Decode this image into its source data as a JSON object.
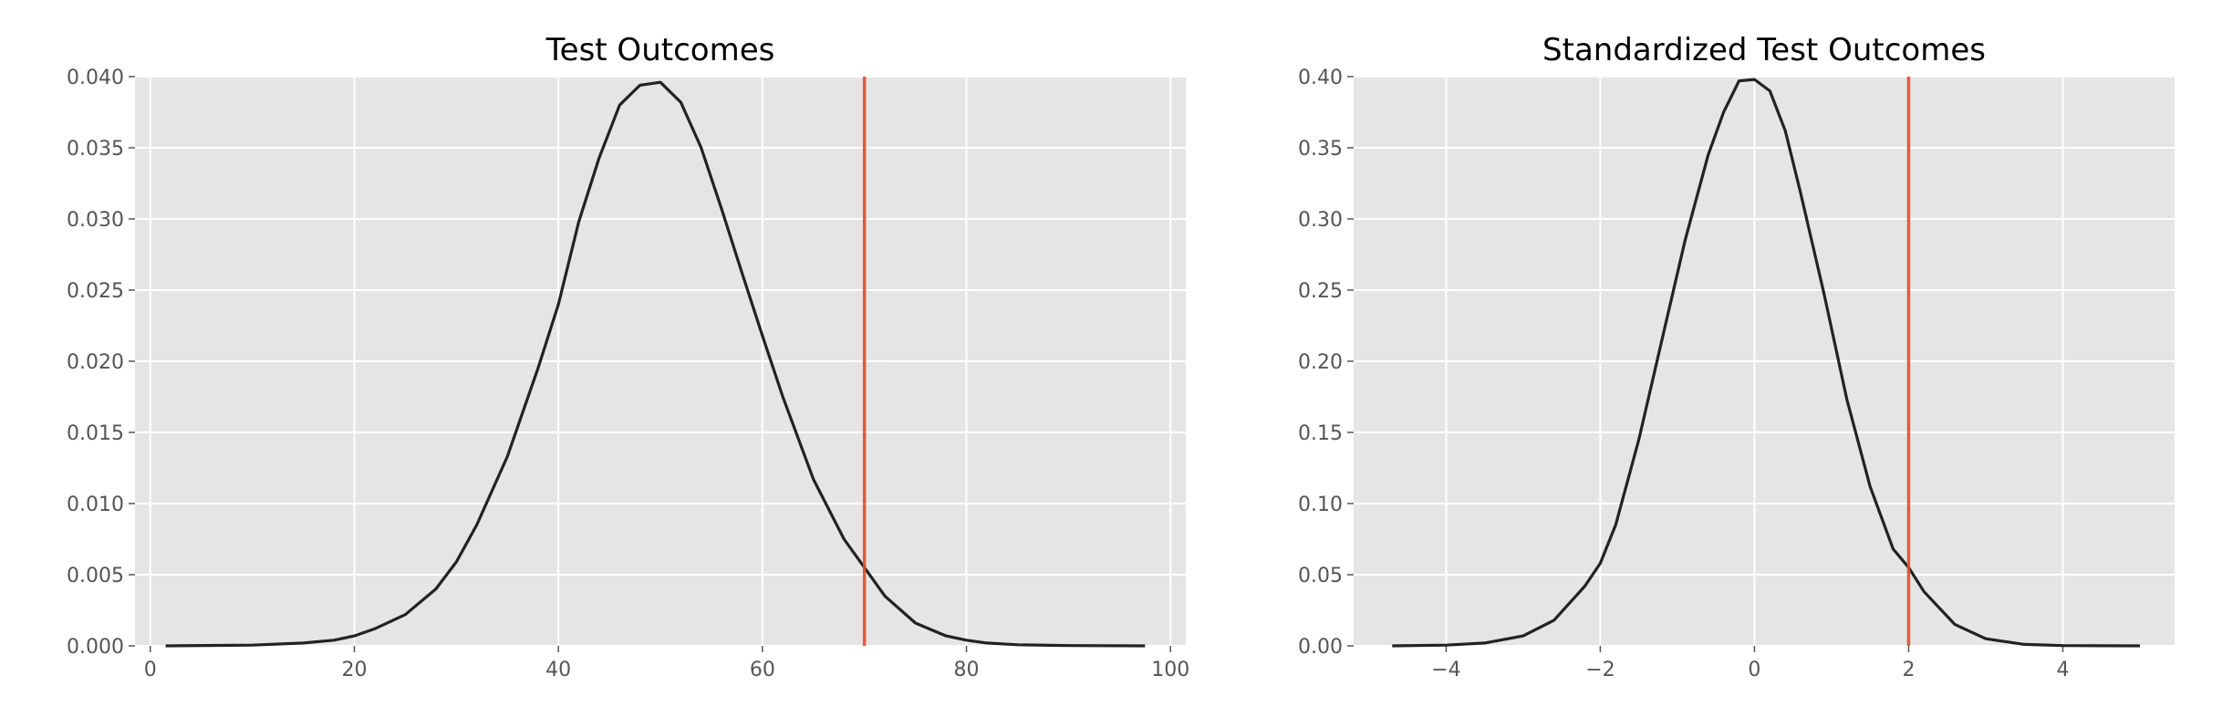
{
  "chart_data": [
    {
      "type": "line",
      "title": "Test Outcomes",
      "xlabel": "",
      "ylabel": "",
      "xlim": [
        -1.5,
        101.5
      ],
      "ylim": [
        0,
        0.04
      ],
      "xticks": [
        0,
        20,
        40,
        60,
        80,
        100
      ],
      "yticks": [
        0.0,
        0.005,
        0.01,
        0.015,
        0.02,
        0.025,
        0.03,
        0.035,
        0.04
      ],
      "xtick_labels": [
        "0",
        "20",
        "40",
        "60",
        "80",
        "100"
      ],
      "ytick_labels": [
        "0.000",
        "0.005",
        "0.010",
        "0.015",
        "0.020",
        "0.025",
        "0.030",
        "0.035",
        "0.040"
      ],
      "grid": true,
      "series": [
        {
          "color": "#222222",
          "x": [
            1.5,
            10,
            15,
            18,
            20,
            22,
            25,
            28,
            30,
            32,
            35,
            38,
            40,
            42,
            44,
            46,
            48,
            50,
            52,
            54,
            56,
            58,
            60,
            62,
            65,
            68,
            70,
            72,
            75,
            78,
            80,
            82,
            85,
            90,
            97.5
          ],
          "y": [
            0.0,
            5e-05,
            0.0002,
            0.0004,
            0.0007,
            0.0012,
            0.0022,
            0.004,
            0.0059,
            0.0085,
            0.0133,
            0.0195,
            0.024,
            0.0298,
            0.0343,
            0.038,
            0.0394,
            0.0396,
            0.0382,
            0.035,
            0.0307,
            0.0262,
            0.0218,
            0.0175,
            0.0117,
            0.0075,
            0.0055,
            0.0035,
            0.0016,
            0.0007,
            0.0004,
            0.0002,
            8e-05,
            2e-05,
            0.0
          ]
        }
      ],
      "vline": {
        "x": 70,
        "color": "#e24a33"
      }
    },
    {
      "type": "line",
      "title": "Standardized Test Outcomes",
      "xlabel": "",
      "ylabel": "",
      "xlim": [
        -5.2,
        5.45
      ],
      "ylim": [
        0,
        0.4
      ],
      "xticks": [
        -4,
        -2,
        0,
        2,
        4
      ],
      "yticks": [
        0.0,
        0.05,
        0.1,
        0.15,
        0.2,
        0.25,
        0.3,
        0.35,
        0.4
      ],
      "xtick_labels": [
        "−4",
        "−2",
        "0",
        "2",
        "4"
      ],
      "ytick_labels": [
        "0.00",
        "0.05",
        "0.10",
        "0.15",
        "0.20",
        "0.25",
        "0.30",
        "0.35",
        "0.40"
      ],
      "grid": true,
      "series": [
        {
          "color": "#222222",
          "x": [
            -4.7,
            -4.0,
            -3.5,
            -3.0,
            -2.6,
            -2.2,
            -2.0,
            -1.8,
            -1.5,
            -1.2,
            -0.9,
            -0.6,
            -0.4,
            -0.2,
            0.0,
            0.2,
            0.4,
            0.6,
            0.9,
            1.2,
            1.5,
            1.8,
            2.0,
            2.2,
            2.6,
            3.0,
            3.5,
            4.0,
            4.5,
            5.0
          ],
          "y": [
            0.0,
            0.0005,
            0.002,
            0.007,
            0.018,
            0.042,
            0.058,
            0.085,
            0.145,
            0.215,
            0.285,
            0.345,
            0.375,
            0.397,
            0.398,
            0.39,
            0.362,
            0.318,
            0.248,
            0.173,
            0.112,
            0.068,
            0.055,
            0.038,
            0.015,
            0.005,
            0.001,
            0.0002,
            5e-05,
            0.0
          ]
        }
      ],
      "vline": {
        "x": 2,
        "color": "#e24a33"
      }
    }
  ]
}
